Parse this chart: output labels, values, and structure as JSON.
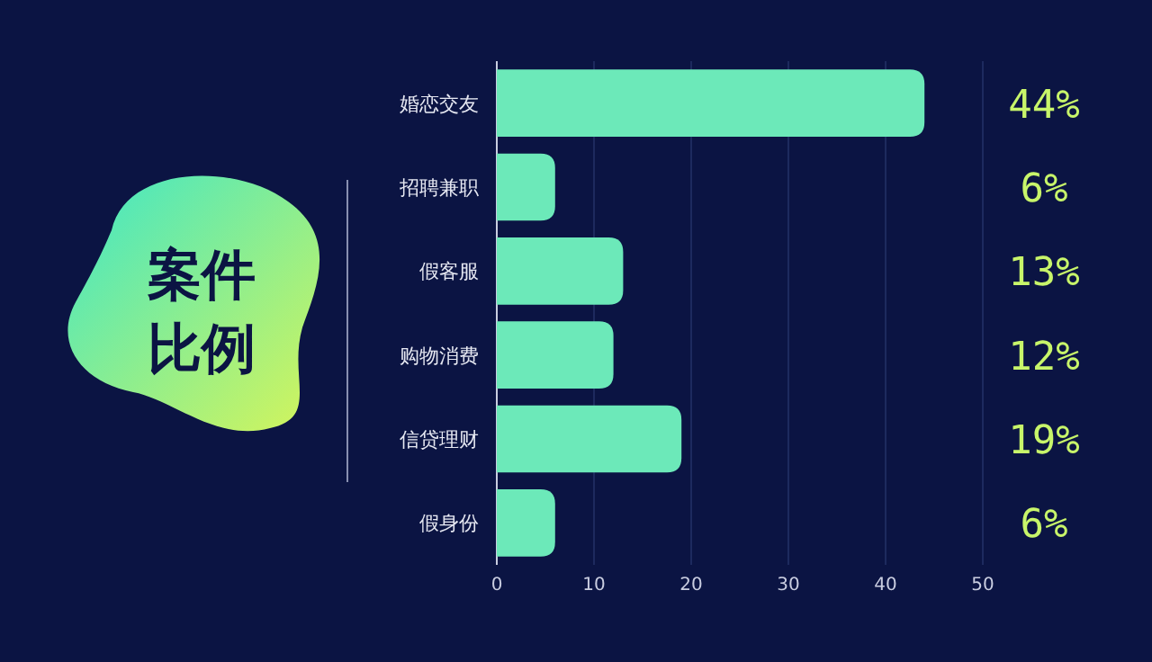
{
  "chart_data": {
    "type": "bar",
    "orientation": "horizontal",
    "title": "案件比例",
    "categories": [
      "婚恋交友",
      "招聘兼职",
      "假客服",
      "购物消费",
      "信贷理财",
      "假身份"
    ],
    "values": [
      44,
      6,
      13,
      12,
      19,
      6
    ],
    "value_labels": [
      "44%",
      "6%",
      "13%",
      "12%",
      "19%",
      "6%"
    ],
    "color": "#6ce9b9",
    "xlim": [
      0,
      50
    ],
    "xticks": [
      0,
      10,
      20,
      30,
      40,
      50
    ],
    "grid": "x"
  }
}
